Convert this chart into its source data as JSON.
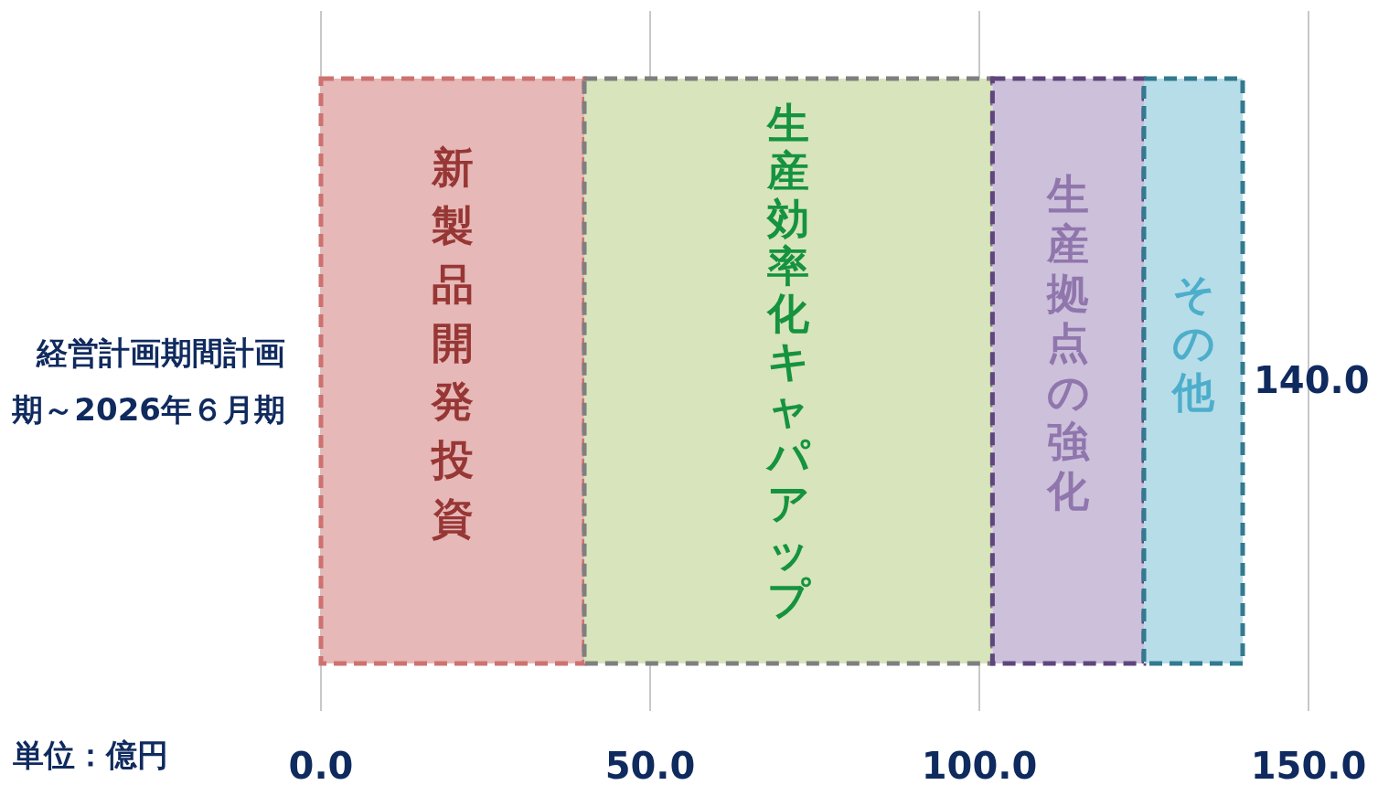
{
  "chart_data": {
    "type": "bar",
    "orientation": "horizontal",
    "stacked": true,
    "categories": [
      "経営計画期間計画期～2026年６月期"
    ],
    "series": [
      {
        "name": "新製品開発投資",
        "color": "#e6b8b7",
        "values": [
          40
        ]
      },
      {
        "name": "生産効率化キャパアップ",
        "color": "#d8e4bc",
        "values": [
          62
        ]
      },
      {
        "name": "生産拠点の強化",
        "color": "#ccc0da",
        "values": [
          23
        ]
      },
      {
        "name": "その他",
        "color": "#b7dde8",
        "values": [
          15
        ]
      }
    ],
    "xlim": [
      0,
      150
    ],
    "xticks": [
      {
        "value": 0,
        "label": "0.0"
      },
      {
        "value": 50,
        "label": "50.0"
      },
      {
        "value": 100,
        "label": "100.0"
      },
      {
        "value": 150,
        "label": "150.0"
      }
    ],
    "grid": "x",
    "line_style": "dashed",
    "totals": [
      "140.0"
    ],
    "annotations": [
      "単位：億円"
    ]
  }
}
